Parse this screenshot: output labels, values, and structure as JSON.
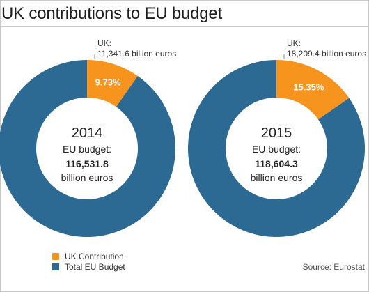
{
  "title": "UK contributions to EU budget",
  "colors": {
    "uk": "#f7941d",
    "total": "#2d6a93",
    "uk_label": "#ffffff"
  },
  "legend": [
    {
      "label": "UK Contribution",
      "color": "#f7941d"
    },
    {
      "label": "Total EU Budget",
      "color": "#2d6a93"
    }
  ],
  "source": "Source: Eurostat",
  "chart_data": [
    {
      "type": "pie",
      "year": "2014",
      "center_label": "EU budget:",
      "center_value": "116,531.8",
      "center_unit": "billion euros",
      "callout_line1": "UK:",
      "callout_line2": "11,341.6 billion euros",
      "slices": [
        {
          "name": "UK Contribution",
          "value": 9.73,
          "label": "9.73%"
        },
        {
          "name": "Total EU Budget",
          "value": 90.27
        }
      ]
    },
    {
      "type": "pie",
      "year": "2015",
      "center_label": "EU budget:",
      "center_value": "118,604.3",
      "center_unit": "billion euros",
      "callout_line1": "UK:",
      "callout_line2": "18,209.4 billion euros",
      "slices": [
        {
          "name": "UK Contribution",
          "value": 15.35,
          "label": "15.35%"
        },
        {
          "name": "Total EU Budget",
          "value": 84.65
        }
      ]
    }
  ]
}
